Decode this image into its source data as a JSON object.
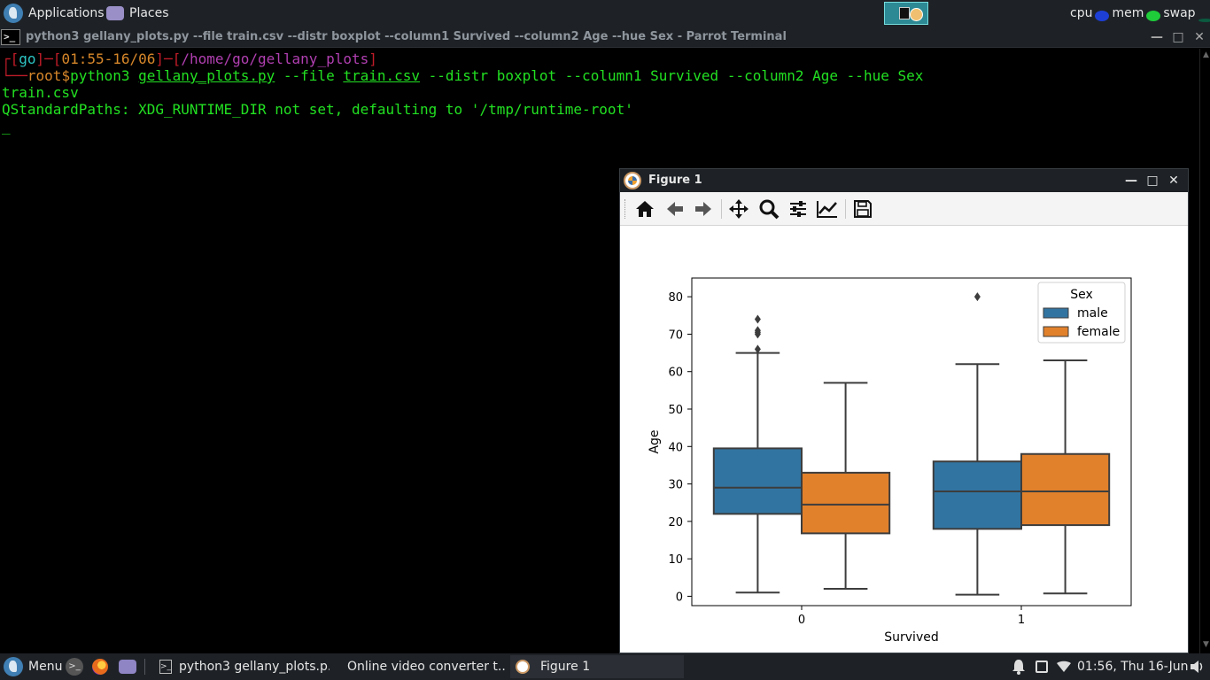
{
  "top_panel": {
    "applications_label": "Applications",
    "places_label": "Places",
    "cpu_label": "cpu",
    "mem_label": "mem",
    "swap_label": "swap"
  },
  "terminal": {
    "title": "python3 gellany_plots.py --file train.csv --distr boxplot --column1 Survived --column2 Age --hue Sex - Parrot Terminal",
    "prompt_user": "go",
    "prompt_time": "01:55-16/06",
    "prompt_path": "/home/go/gellany_plots",
    "prompt_root": "root",
    "prompt_symbol": "$",
    "command_prefix": "python3 ",
    "command_script": "gellany_plots.py",
    "command_flag_file": " --file ",
    "command_file": "train.csv",
    "command_rest": " --distr boxplot --column1 Survived --column2 Age --hue Sex",
    "output_line1": "train.csv",
    "output_line2": "QStandardPaths: XDG_RUNTIME_DIR not set, defaulting to '/tmp/runtime-root'",
    "cursor": "_"
  },
  "figure_window": {
    "title": "Figure 1",
    "toolbar": [
      "home-icon",
      "back-icon",
      "forward-icon",
      "pan-icon",
      "zoom-icon",
      "configure-subplots-icon",
      "edit-axis-icon",
      "save-icon"
    ]
  },
  "chart_data": {
    "type": "boxplot",
    "xlabel": "Survived",
    "ylabel": "Age",
    "categories": [
      "0",
      "1"
    ],
    "ylim": [
      -2.5,
      85
    ],
    "yticks": [
      0,
      10,
      20,
      30,
      40,
      50,
      60,
      70,
      80
    ],
    "legend": {
      "title": "Sex",
      "placement": "top-right"
    },
    "series": [
      {
        "name": "male",
        "color": "#3274a1",
        "boxes": [
          {
            "category": "0",
            "whisker_low": 1,
            "q1": 22,
            "median": 29,
            "q3": 39.5,
            "whisker_high": 65,
            "outliers": [
              66,
              70,
              70.5,
              71,
              74
            ]
          },
          {
            "category": "1",
            "whisker_low": 0.42,
            "q1": 18,
            "median": 28,
            "q3": 36,
            "whisker_high": 62,
            "outliers": [
              80
            ]
          }
        ]
      },
      {
        "name": "female",
        "color": "#e1812c",
        "boxes": [
          {
            "category": "0",
            "whisker_low": 2,
            "q1": 16.8,
            "median": 24.5,
            "q3": 33,
            "whisker_high": 57,
            "outliers": []
          },
          {
            "category": "1",
            "whisker_low": 0.75,
            "q1": 19,
            "median": 28,
            "q3": 38,
            "whisker_high": 63,
            "outliers": []
          }
        ]
      }
    ]
  },
  "bottom_panel": {
    "menu_label": "Menu",
    "task1": "python3 gellany_plots.p...",
    "task2": "Online video converter t...",
    "task3": "Figure 1",
    "clock": "01:56, Thu 16-Jun"
  }
}
